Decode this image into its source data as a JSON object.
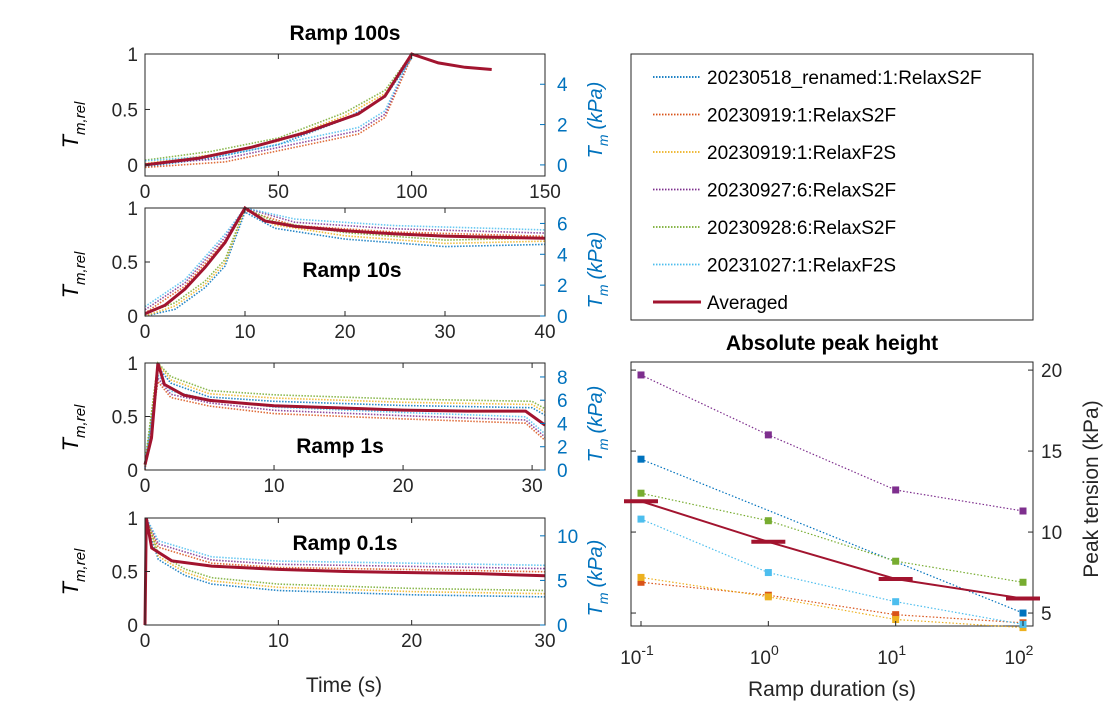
{
  "chart_data": [
    {
      "type": "line",
      "title": "Ramp 100s",
      "xlabel": "",
      "ylabel_left": "T",
      "ylabel_left_sub": "m,rel",
      "ylabel_right": "T",
      "ylabel_right_sub": "m",
      "ylabel_right_unit": "(kPa)",
      "xlim": [
        0,
        150
      ],
      "ylim": [
        -0.1,
        1
      ],
      "ylim_right": [
        -0.55,
        5.5
      ],
      "xticks": [
        0,
        50,
        100,
        150
      ],
      "yticks": [
        0,
        0.5,
        1
      ],
      "yticks_right": [
        0,
        2,
        4
      ],
      "averaged": [
        [
          0,
          0
        ],
        [
          20,
          0.06
        ],
        [
          40,
          0.16
        ],
        [
          60,
          0.29
        ],
        [
          80,
          0.46
        ],
        [
          90,
          0.62
        ],
        [
          100,
          1
        ],
        [
          110,
          0.92
        ],
        [
          120,
          0.88
        ],
        [
          130,
          0.86
        ]
      ],
      "raw": [
        {
          "points": [
            [
              0,
              0.02
            ],
            [
              25,
              0.1
            ],
            [
              50,
              0.22
            ],
            [
              75,
              0.45
            ],
            [
              90,
              0.65
            ],
            [
              100,
              1
            ]
          ]
        },
        {
          "points": [
            [
              0,
              0
            ],
            [
              30,
              0.05
            ],
            [
              60,
              0.2
            ],
            [
              80,
              0.3
            ],
            [
              90,
              0.45
            ],
            [
              100,
              1
            ]
          ]
        }
      ]
    },
    {
      "type": "line",
      "title": "Ramp 10s",
      "xlabel": "",
      "ylabel_left": "T",
      "ylabel_left_sub": "m,rel",
      "ylabel_right": "T",
      "ylabel_right_sub": "m",
      "ylabel_right_unit": "(kPa)",
      "xlim": [
        0,
        40
      ],
      "ylim": [
        0,
        1
      ],
      "ylim_right": [
        0,
        7
      ],
      "xticks": [
        0,
        10,
        20,
        30,
        40
      ],
      "yticks": [
        0,
        0.5,
        1
      ],
      "yticks_right": [
        0,
        2,
        4,
        6
      ],
      "averaged": [
        [
          0,
          0.02
        ],
        [
          2,
          0.1
        ],
        [
          4,
          0.25
        ],
        [
          6,
          0.45
        ],
        [
          8,
          0.68
        ],
        [
          10,
          1
        ],
        [
          12,
          0.88
        ],
        [
          15,
          0.83
        ],
        [
          20,
          0.79
        ],
        [
          25,
          0.76
        ],
        [
          30,
          0.74
        ],
        [
          35,
          0.73
        ],
        [
          40,
          0.72
        ]
      ],
      "raw": [
        {
          "points": [
            [
              0,
              0
            ],
            [
              3,
              0.1
            ],
            [
              6,
              0.3
            ],
            [
              8,
              0.5
            ],
            [
              10,
              1
            ],
            [
              13,
              0.85
            ],
            [
              20,
              0.75
            ],
            [
              30,
              0.68
            ],
            [
              40,
              0.7
            ]
          ]
        },
        {
          "points": [
            [
              0,
              0.05
            ],
            [
              4,
              0.3
            ],
            [
              8,
              0.72
            ],
            [
              10,
              1
            ],
            [
              15,
              0.86
            ],
            [
              25,
              0.8
            ],
            [
              40,
              0.76
            ]
          ]
        }
      ]
    },
    {
      "type": "line",
      "title": "Ramp 1s",
      "xlabel": "",
      "ylabel_left": "T",
      "ylabel_left_sub": "m,rel",
      "ylabel_right": "T",
      "ylabel_right_sub": "m",
      "ylabel_right_unit": "(kPa)",
      "xlim": [
        0,
        31
      ],
      "ylim": [
        0,
        1
      ],
      "ylim_right": [
        0,
        9.2
      ],
      "xticks": [
        0,
        10,
        20,
        30
      ],
      "yticks": [
        0,
        0.5,
        1
      ],
      "yticks_right": [
        0,
        2,
        4,
        6,
        8
      ],
      "averaged": [
        [
          0,
          0.05
        ],
        [
          0.5,
          0.3
        ],
        [
          1,
          1
        ],
        [
          1.5,
          0.8
        ],
        [
          3,
          0.7
        ],
        [
          5,
          0.65
        ],
        [
          10,
          0.6
        ],
        [
          15,
          0.58
        ],
        [
          20,
          0.56
        ],
        [
          25,
          0.55
        ],
        [
          29.5,
          0.55
        ],
        [
          31,
          0.42
        ]
      ],
      "raw": [
        {
          "points": [
            [
              0,
              0.05
            ],
            [
              1,
              1
            ],
            [
              2,
              0.85
            ],
            [
              5,
              0.72
            ],
            [
              10,
              0.68
            ],
            [
              20,
              0.64
            ],
            [
              30,
              0.62
            ],
            [
              31,
              0.55
            ]
          ]
        },
        {
          "points": [
            [
              0,
              0.02
            ],
            [
              1,
              0.85
            ],
            [
              2,
              0.7
            ],
            [
              5,
              0.62
            ],
            [
              10,
              0.55
            ],
            [
              20,
              0.5
            ],
            [
              29.5,
              0.46
            ],
            [
              31,
              0.3
            ]
          ]
        }
      ]
    },
    {
      "type": "line",
      "title": "Ramp 0.1s",
      "xlabel": "Time (s)",
      "ylabel_left": "T",
      "ylabel_left_sub": "m,rel",
      "ylabel_right": "T",
      "ylabel_right_sub": "m",
      "ylabel_right_unit": "(kPa)",
      "xlim": [
        0,
        30
      ],
      "ylim": [
        0,
        1
      ],
      "ylim_right": [
        0,
        12
      ],
      "xticks": [
        0,
        10,
        20,
        30
      ],
      "yticks": [
        0,
        0.5,
        1
      ],
      "yticks_right": [
        0,
        5,
        10
      ],
      "averaged": [
        [
          0,
          0
        ],
        [
          0.1,
          1
        ],
        [
          0.5,
          0.72
        ],
        [
          2,
          0.6
        ],
        [
          5,
          0.55
        ],
        [
          10,
          0.52
        ],
        [
          15,
          0.5
        ],
        [
          20,
          0.49
        ],
        [
          25,
          0.48
        ],
        [
          30,
          0.46
        ]
      ],
      "raw": [
        {
          "points": [
            [
              0,
              0
            ],
            [
              0.1,
              1
            ],
            [
              1,
              0.65
            ],
            [
              3,
              0.5
            ],
            [
              5,
              0.42
            ],
            [
              10,
              0.36
            ],
            [
              20,
              0.32
            ],
            [
              30,
              0.3
            ]
          ]
        },
        {
          "points": [
            [
              0,
              0
            ],
            [
              0.1,
              1
            ],
            [
              1,
              0.75
            ],
            [
              5,
              0.6
            ],
            [
              10,
              0.56
            ],
            [
              20,
              0.54
            ],
            [
              30,
              0.52
            ]
          ]
        }
      ]
    },
    {
      "type": "scatter",
      "title": "Absolute peak height",
      "xlabel": "Ramp duration (s)",
      "ylabel": "Peak tension (kPa)",
      "xscale": "log",
      "xlim": [
        0.1,
        100
      ],
      "ylim": [
        4.2,
        20.5
      ],
      "xtick_bases": [
        "10",
        "10",
        "10",
        "10"
      ],
      "xtick_exponents": [
        "-1",
        "0",
        "1",
        "2"
      ],
      "yticks": [
        5,
        10,
        15,
        20
      ],
      "x": [
        0.1,
        1,
        10,
        100
      ],
      "series": [
        {
          "name": "20230518_renamed:1:RelaxS2F",
          "color": "#0072BD",
          "values": [
            14.5,
            null,
            null,
            5.0
          ]
        },
        {
          "name": "20230919:1:RelaxS2F",
          "color": "#D95319",
          "values": [
            6.9,
            6.1,
            4.9,
            4.4
          ]
        },
        {
          "name": "20230919:1:RelaxF2S",
          "color": "#EDB120",
          "values": [
            7.2,
            6.0,
            4.6,
            4.1
          ]
        },
        {
          "name": "20230927:6:RelaxS2F",
          "color": "#7E2F8E",
          "values": [
            19.7,
            16.0,
            12.6,
            11.3
          ]
        },
        {
          "name": "20230928:6:RelaxS2F",
          "color": "#77AC30",
          "values": [
            12.4,
            10.7,
            8.2,
            6.9
          ]
        },
        {
          "name": "20231027:1:RelaxF2S",
          "color": "#4DBEEE",
          "values": [
            10.8,
            7.5,
            5.7,
            4.3
          ]
        },
        {
          "name": "Averaged",
          "color": "#A2142F",
          "values": [
            11.9,
            9.4,
            7.1,
            5.9
          ]
        }
      ],
      "legend_position": "outside-top"
    }
  ],
  "colors": {
    "averaged": "#A2142F",
    "right_axis": "#0072BD",
    "axis": "#262626"
  }
}
